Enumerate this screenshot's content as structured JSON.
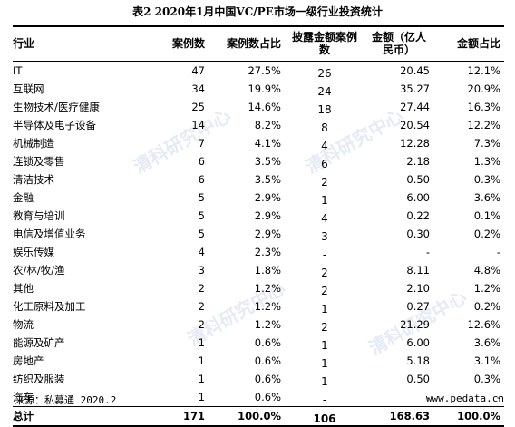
{
  "title": "表2  2020年1月中国VC/PE市场一级行业投资统计",
  "headers": {
    "industry": "行业",
    "cases": "案例数",
    "case_pct": "案例数占比",
    "disclosed": "披露金额案例数",
    "amount": "金额（亿人民币）",
    "amount_pct": "金额占比"
  },
  "rows": [
    {
      "industry": "IT",
      "cases": "47",
      "case_pct": "27.5%",
      "disclosed": "26",
      "amount": "20.45",
      "amount_pct": "12.1%"
    },
    {
      "industry": "互联网",
      "cases": "34",
      "case_pct": "19.9%",
      "disclosed": "24",
      "amount": "35.27",
      "amount_pct": "20.9%"
    },
    {
      "industry": "生物技术/医疗健康",
      "cases": "25",
      "case_pct": "14.6%",
      "disclosed": "18",
      "amount": "27.44",
      "amount_pct": "16.3%"
    },
    {
      "industry": "半导体及电子设备",
      "cases": "14",
      "case_pct": "8.2%",
      "disclosed": "8",
      "amount": "20.54",
      "amount_pct": "12.2%"
    },
    {
      "industry": "机械制造",
      "cases": "7",
      "case_pct": "4.1%",
      "disclosed": "4",
      "amount": "12.28",
      "amount_pct": "7.3%"
    },
    {
      "industry": "连锁及零售",
      "cases": "6",
      "case_pct": "3.5%",
      "disclosed": "6",
      "amount": "2.18",
      "amount_pct": "1.3%"
    },
    {
      "industry": "清洁技术",
      "cases": "6",
      "case_pct": "3.5%",
      "disclosed": "2",
      "amount": "0.50",
      "amount_pct": "0.3%"
    },
    {
      "industry": "金融",
      "cases": "5",
      "case_pct": "2.9%",
      "disclosed": "1",
      "amount": "6.00",
      "amount_pct": "3.6%"
    },
    {
      "industry": "教育与培训",
      "cases": "5",
      "case_pct": "2.9%",
      "disclosed": "4",
      "amount": "0.22",
      "amount_pct": "0.1%"
    },
    {
      "industry": "电信及增值业务",
      "cases": "5",
      "case_pct": "2.9%",
      "disclosed": "3",
      "amount": "0.30",
      "amount_pct": "0.2%"
    },
    {
      "industry": "娱乐传媒",
      "cases": "4",
      "case_pct": "2.3%",
      "disclosed": "-",
      "amount": "-",
      "amount_pct": "-"
    },
    {
      "industry": "农/林/牧/渔",
      "cases": "3",
      "case_pct": "1.8%",
      "disclosed": "2",
      "amount": "8.11",
      "amount_pct": "4.8%"
    },
    {
      "industry": "其他",
      "cases": "2",
      "case_pct": "1.2%",
      "disclosed": "2",
      "amount": "2.10",
      "amount_pct": "1.2%"
    },
    {
      "industry": "化工原料及加工",
      "cases": "2",
      "case_pct": "1.2%",
      "disclosed": "1",
      "amount": "0.27",
      "amount_pct": "0.2%"
    },
    {
      "industry": "物流",
      "cases": "2",
      "case_pct": "1.2%",
      "disclosed": "2",
      "amount": "21.29",
      "amount_pct": "12.6%"
    },
    {
      "industry": "能源及矿产",
      "cases": "1",
      "case_pct": "0.6%",
      "disclosed": "1",
      "amount": "6.00",
      "amount_pct": "3.6%"
    },
    {
      "industry": "房地产",
      "cases": "1",
      "case_pct": "0.6%",
      "disclosed": "1",
      "amount": "5.18",
      "amount_pct": "3.1%"
    },
    {
      "industry": "纺织及服装",
      "cases": "1",
      "case_pct": "0.6%",
      "disclosed": "1",
      "amount": "0.50",
      "amount_pct": "0.3%"
    },
    {
      "industry": "汽车",
      "cases": "1",
      "case_pct": "0.6%",
      "disclosed": "-",
      "amount": "-",
      "amount_pct": "-"
    }
  ],
  "total": {
    "industry": "总计",
    "cases": "171",
    "case_pct": "100.0%",
    "disclosed": "106",
    "amount": "168.63",
    "amount_pct": "100.0%"
  },
  "footer": {
    "source": "来源：私募通 2020.2",
    "site": "www.pedata.cn"
  },
  "watermark": {
    "cn": "清科研究中心",
    "en": "Zero2IPO Research"
  }
}
